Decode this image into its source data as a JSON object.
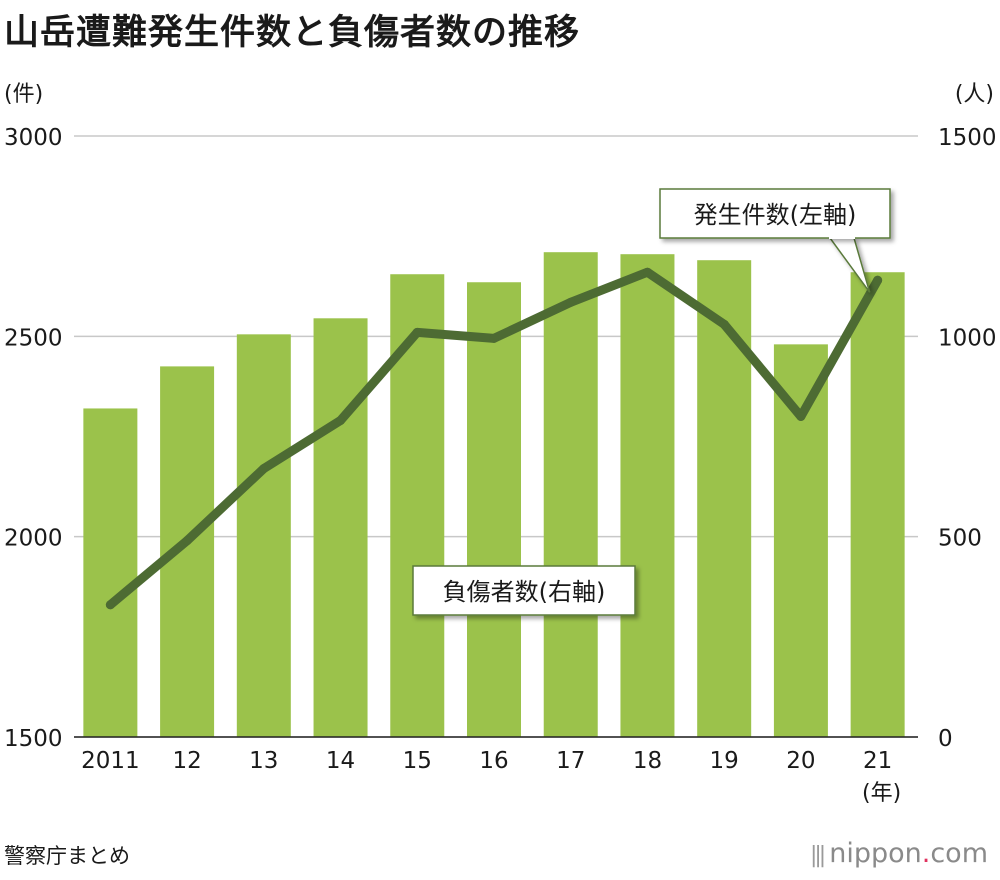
{
  "title": "山岳遭難発生件数と負傷者数の推移",
  "source": "警察庁まとめ",
  "logo": {
    "name": "nippon",
    "dot": ".",
    "suffix": "com"
  },
  "chart_data": {
    "type": "bar",
    "title": "山岳遭難発生件数と負傷者数の推移",
    "categories": [
      "2011",
      "12",
      "13",
      "14",
      "15",
      "16",
      "17",
      "18",
      "19",
      "20",
      "21"
    ],
    "xlabel": "(年)",
    "series": [
      {
        "name": "発生件数(左軸)",
        "type": "bar",
        "axis": "left",
        "color": "#9bc24b",
        "values": [
          2320,
          2425,
          2505,
          2545,
          2655,
          2635,
          2710,
          2705,
          2690,
          2480,
          2660
        ]
      },
      {
        "name": "負傷者数(右軸)",
        "type": "line",
        "axis": "right",
        "color": "#4d6b33",
        "values": [
          330,
          490,
          670,
          790,
          1010,
          995,
          1085,
          1160,
          1030,
          800,
          1140
        ]
      }
    ],
    "y_left": {
      "label": "(件)",
      "ylim": [
        1500,
        3000
      ],
      "ticks": [
        1500,
        2000,
        2500,
        3000
      ]
    },
    "y_right": {
      "label": "(人)",
      "ylim": [
        0,
        1500
      ],
      "ticks": [
        0,
        500,
        1000,
        1500
      ]
    },
    "grid": true,
    "annotations": [
      {
        "text": "発生件数(左軸)",
        "target_series": 0,
        "target_index": 10
      },
      {
        "text": "負傷者数(右軸)",
        "target_series": 1
      }
    ]
  }
}
